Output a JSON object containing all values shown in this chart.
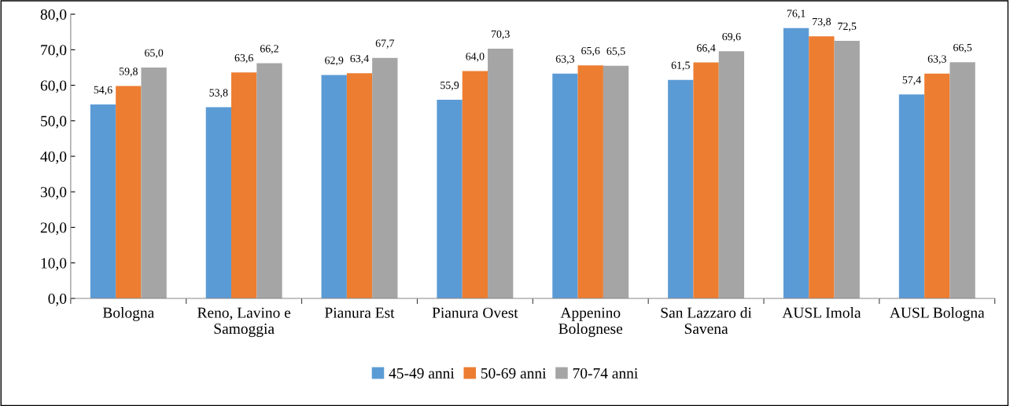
{
  "chart_data": {
    "type": "bar",
    "categories": [
      "Bologna",
      "Reno, Lavino e\nSamoggia",
      "Pianura Est",
      "Pianura Ovest",
      "Appenino\nBolognese",
      "San Lazzaro di\nSavena",
      "AUSL Imola",
      "AUSL Bologna"
    ],
    "series": [
      {
        "name": "45-49 anni",
        "color": "#5b9bd5",
        "values": [
          54.6,
          53.8,
          62.9,
          55.9,
          63.3,
          61.5,
          76.1,
          57.4
        ],
        "value_labels": [
          "54,6",
          "53,8",
          "62,9",
          "55,9",
          "63,3",
          "61,5",
          "76,1",
          "57,4"
        ]
      },
      {
        "name": "50-69 anni",
        "color": "#ed7d31",
        "values": [
          59.8,
          63.6,
          63.4,
          64.0,
          65.6,
          66.4,
          73.8,
          63.3
        ],
        "value_labels": [
          "59,8",
          "63,6",
          "63,4",
          "64,0",
          "65,6",
          "66,4",
          "73,8",
          "63,3"
        ]
      },
      {
        "name": "70-74 anni",
        "color": "#a5a5a5",
        "values": [
          65.0,
          66.2,
          67.7,
          70.3,
          65.5,
          69.6,
          72.5,
          66.5
        ],
        "value_labels": [
          "65,0",
          "66,2",
          "67,7",
          "70,3",
          "65,5",
          "69,6",
          "72,5",
          "66,5"
        ]
      }
    ],
    "ylim": [
      0,
      80
    ],
    "yticks": [
      {
        "value": 0,
        "label": "0,0"
      },
      {
        "value": 10,
        "label": "10,0"
      },
      {
        "value": 20,
        "label": "20,0"
      },
      {
        "value": 30,
        "label": "30,0"
      },
      {
        "value": 40,
        "label": "40,0"
      },
      {
        "value": 50,
        "label": "50,0"
      },
      {
        "value": 60,
        "label": "60,0"
      },
      {
        "value": 70,
        "label": "70,0"
      },
      {
        "value": 80,
        "label": "80,0"
      }
    ],
    "grid": false,
    "legend": "bottom"
  }
}
